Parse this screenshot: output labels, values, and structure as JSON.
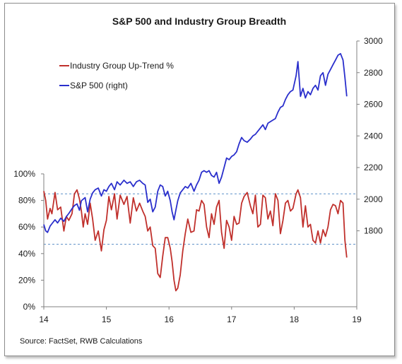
{
  "chart_data": {
    "type": "line",
    "title": "S&P 500 and Industry Group Breadth",
    "source": "Source: FactSet, RWB Calculations",
    "x_ticks": [
      "14",
      "15",
      "16",
      "17",
      "18",
      "19"
    ],
    "x_range": [
      2014.0,
      2019.0
    ],
    "y_left_ticks": [
      "0%",
      "20%",
      "40%",
      "60%",
      "80%",
      "100%"
    ],
    "y_left_range": [
      0,
      100
    ],
    "y_right_ticks": [
      "1800",
      "2000",
      "2200",
      "2400",
      "2600",
      "2800",
      "3000"
    ],
    "y_right_range": [
      1320,
      3000
    ],
    "reference_lines": [
      85,
      47
    ],
    "legend_position": "top-left",
    "series": [
      {
        "name": "Industry Group Up-Trend %",
        "axis": "left",
        "color": "#c0302c",
        "x": [
          2014.0,
          2014.03,
          2014.06,
          2014.1,
          2014.13,
          2014.18,
          2014.22,
          2014.27,
          2014.32,
          2014.36,
          2014.4,
          2014.45,
          2014.49,
          2014.53,
          2014.57,
          2014.6,
          2014.63,
          2014.66,
          2014.7,
          2014.74,
          2014.78,
          2014.82,
          2014.87,
          2014.92,
          2014.96,
          2015.0,
          2015.04,
          2015.08,
          2015.13,
          2015.17,
          2015.22,
          2015.28,
          2015.33,
          2015.38,
          2015.43,
          2015.48,
          2015.53,
          2015.58,
          2015.62,
          2015.66,
          2015.7,
          2015.74,
          2015.78,
          2015.82,
          2015.86,
          2015.9,
          2015.94,
          2015.98,
          2016.02,
          2016.05,
          2016.08,
          2016.11,
          2016.14,
          2016.18,
          2016.22,
          2016.26,
          2016.3,
          2016.35,
          2016.4,
          2016.44,
          2016.48,
          2016.52,
          2016.56,
          2016.6,
          2016.64,
          2016.68,
          2016.72,
          2016.76,
          2016.8,
          2016.84,
          2016.88,
          2016.92,
          2016.96,
          2017.0,
          2017.04,
          2017.08,
          2017.12,
          2017.16,
          2017.2,
          2017.25,
          2017.3,
          2017.34,
          2017.38,
          2017.42,
          2017.46,
          2017.5,
          2017.54,
          2017.58,
          2017.62,
          2017.66,
          2017.7,
          2017.74,
          2017.78,
          2017.82,
          2017.86,
          2017.9,
          2017.94,
          2017.98,
          2018.03,
          2018.06,
          2018.1,
          2018.14,
          2018.18,
          2018.22,
          2018.26,
          2018.3,
          2018.34,
          2018.38,
          2018.42,
          2018.46,
          2018.5,
          2018.54,
          2018.58,
          2018.62,
          2018.66,
          2018.7,
          2018.74,
          2018.78,
          2018.81,
          2018.84
        ],
        "values": [
          87,
          80,
          66,
          74,
          70,
          86,
          73,
          75,
          57,
          68,
          65,
          70,
          85,
          88,
          81,
          72,
          60,
          70,
          62,
          78,
          66,
          50,
          57,
          42,
          58,
          65,
          83,
          73,
          85,
          66,
          84,
          77,
          83,
          63,
          82,
          72,
          78,
          72,
          68,
          57,
          60,
          46,
          44,
          25,
          22,
          38,
          52,
          52,
          44,
          34,
          20,
          12,
          14,
          24,
          42,
          55,
          66,
          56,
          57,
          73,
          72,
          80,
          77,
          60,
          52,
          70,
          62,
          75,
          80,
          56,
          44,
          65,
          60,
          50,
          68,
          62,
          63,
          78,
          83,
          86,
          76,
          70,
          84,
          60,
          62,
          84,
          82,
          66,
          72,
          61,
          85,
          80,
          55,
          65,
          78,
          80,
          72,
          74,
          85,
          88,
          82,
          60,
          76,
          60,
          62,
          50,
          48,
          57,
          48,
          58,
          53,
          60,
          73,
          77,
          76,
          70,
          80,
          78,
          50,
          37
        ]
      },
      {
        "name": "S&P 500 (right)",
        "axis": "right",
        "color": "#2a2fcc",
        "x": [
          2014.0,
          2014.03,
          2014.06,
          2014.1,
          2014.13,
          2014.18,
          2014.22,
          2014.27,
          2014.32,
          2014.36,
          2014.4,
          2014.45,
          2014.49,
          2014.53,
          2014.57,
          2014.6,
          2014.63,
          2014.66,
          2014.7,
          2014.74,
          2014.78,
          2014.82,
          2014.87,
          2014.92,
          2014.96,
          2015.0,
          2015.04,
          2015.08,
          2015.13,
          2015.17,
          2015.22,
          2015.28,
          2015.33,
          2015.38,
          2015.43,
          2015.48,
          2015.53,
          2015.58,
          2015.62,
          2015.66,
          2015.7,
          2015.74,
          2015.78,
          2015.82,
          2015.86,
          2015.9,
          2015.94,
          2015.98,
          2016.02,
          2016.05,
          2016.08,
          2016.11,
          2016.14,
          2016.18,
          2016.22,
          2016.26,
          2016.3,
          2016.35,
          2016.4,
          2016.44,
          2016.48,
          2016.52,
          2016.56,
          2016.6,
          2016.64,
          2016.68,
          2016.72,
          2016.76,
          2016.8,
          2016.84,
          2016.88,
          2016.92,
          2016.96,
          2017.0,
          2017.04,
          2017.08,
          2017.12,
          2017.16,
          2017.2,
          2017.25,
          2017.3,
          2017.34,
          2017.38,
          2017.42,
          2017.46,
          2017.5,
          2017.54,
          2017.58,
          2017.62,
          2017.66,
          2017.7,
          2017.74,
          2017.78,
          2017.82,
          2017.86,
          2017.9,
          2017.94,
          2017.98,
          2018.03,
          2018.06,
          2018.1,
          2018.14,
          2018.18,
          2018.22,
          2018.26,
          2018.3,
          2018.34,
          2018.38,
          2018.42,
          2018.46,
          2018.5,
          2018.54,
          2018.58,
          2018.62,
          2018.66,
          2018.7,
          2018.74,
          2018.78,
          2018.81,
          2018.84
        ],
        "values": [
          1840,
          1800,
          1790,
          1830,
          1845,
          1870,
          1850,
          1880,
          1860,
          1890,
          1910,
          1940,
          1960,
          1970,
          1930,
          1990,
          2000,
          2010,
          1920,
          2000,
          2040,
          2060,
          2070,
          2020,
          2060,
          2050,
          2080,
          2100,
          2060,
          2110,
          2090,
          2120,
          2100,
          2110,
          2080,
          2110,
          2120,
          2100,
          2090,
          1980,
          2000,
          1920,
          1950,
          2050,
          2090,
          2080,
          2020,
          2050,
          1990,
          1920,
          1870,
          1930,
          1990,
          2040,
          2060,
          2080,
          2070,
          2100,
          2050,
          2090,
          2120,
          2170,
          2180,
          2170,
          2180,
          2150,
          2140,
          2170,
          2100,
          2140,
          2200,
          2260,
          2250,
          2270,
          2280,
          2300,
          2350,
          2390,
          2370,
          2360,
          2380,
          2400,
          2410,
          2430,
          2450,
          2470,
          2440,
          2480,
          2490,
          2500,
          2510,
          2550,
          2580,
          2590,
          2630,
          2660,
          2680,
          2690,
          2780,
          2870,
          2650,
          2700,
          2640,
          2680,
          2660,
          2700,
          2720,
          2690,
          2780,
          2800,
          2720,
          2790,
          2820,
          2850,
          2880,
          2910,
          2920,
          2880,
          2770,
          2650
        ]
      }
    ]
  }
}
